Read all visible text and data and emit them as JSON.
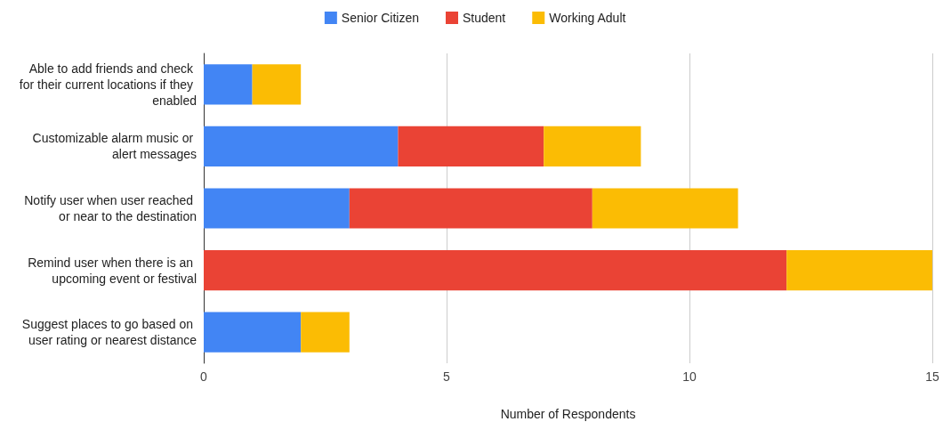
{
  "chart_data": {
    "type": "bar",
    "orientation": "horizontal",
    "stacked": true,
    "xlabel": "Number of Respondents",
    "categories": [
      "Able to add friends and check for their current locations if they enabled",
      "Customizable alarm music or alert messages",
      "Notify user when user reached or near to the destination",
      "Remind user when there is an upcoming event or festival",
      "Suggest places to go based on user rating or nearest distance"
    ],
    "series": [
      {
        "name": "Senior Citizen",
        "color": "#4285f4",
        "values": [
          1,
          4,
          3,
          0,
          2
        ]
      },
      {
        "name": "Student",
        "color": "#ea4335",
        "values": [
          0,
          3,
          5,
          12,
          0
        ]
      },
      {
        "name": "Working Adult",
        "color": "#fbbc04",
        "values": [
          1,
          2,
          3,
          3,
          1
        ]
      }
    ],
    "xlim": [
      0,
      15
    ],
    "xticks": [
      0,
      5,
      10,
      15
    ],
    "grid": "x",
    "legend": "top"
  }
}
